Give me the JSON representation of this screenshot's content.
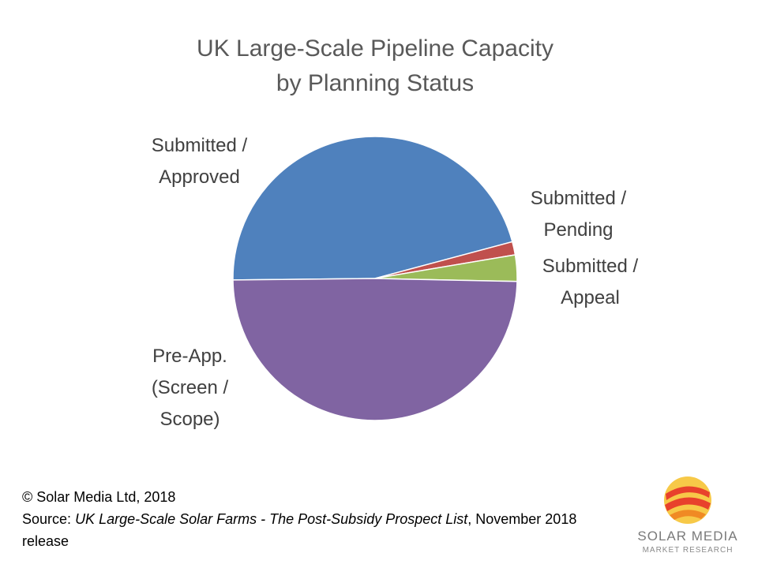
{
  "chart_data": {
    "type": "pie",
    "title": "UK Large-Scale Pipeline Capacity by Planning Status",
    "categories": [
      "Submitted / Approved",
      "Submitted / Pending",
      "Submitted / Appeal",
      "Pre-App. (Screen / Scope)"
    ],
    "values": [
      46,
      1.5,
      3,
      49.5
    ],
    "colors": [
      "#4f81bd",
      "#c0504d",
      "#9bbb59",
      "#8064a2"
    ]
  },
  "footer": {
    "copyright": "© Solar Media Ltd, 2018",
    "source_prefix": "Source:",
    "source_title": "UK Large-Scale Solar Farms - The Post-Subsidy Prospect List",
    "source_suffix": ", November 2018 release"
  },
  "logo": {
    "name": "SOLAR MEDIA",
    "tagline": "MARKET RESEARCH"
  }
}
